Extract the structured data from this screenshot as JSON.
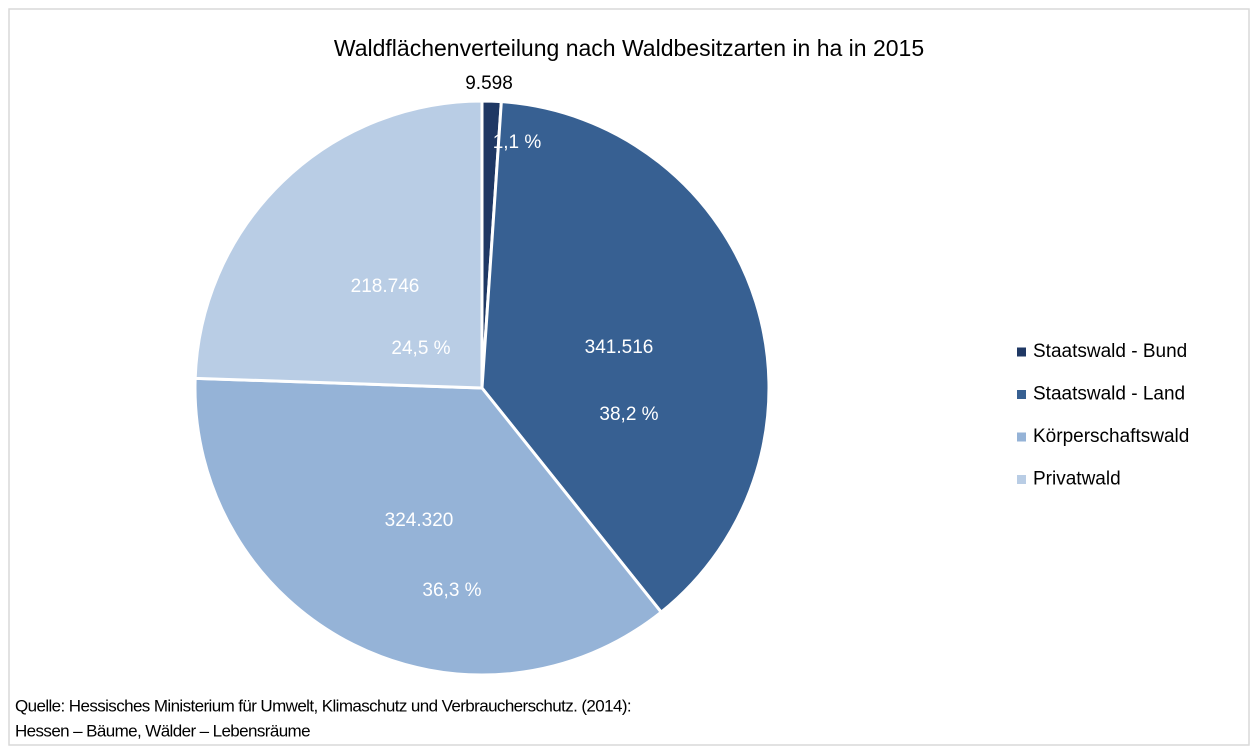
{
  "chart_data": {
    "type": "pie",
    "title": "Waldflächenverteilung nach Waldbesitzarten in ha in 2015",
    "categories": [
      "Staatswald - Bund",
      "Staatswald - Land",
      "Körperschaftswald",
      "Privatwald"
    ],
    "values": [
      9598,
      341516,
      324320,
      218746
    ],
    "value_labels": [
      "9.598",
      "341.516",
      "324.320",
      "218.746"
    ],
    "percent_values": [
      1.1,
      38.2,
      36.3,
      24.5
    ],
    "percent_labels": [
      "1,1 %",
      "38,2 %",
      "36,3 %",
      "24,5 %"
    ],
    "colors": [
      "#1f3864",
      "#376092",
      "#95b3d7",
      "#b9cde5"
    ],
    "legend": "right",
    "source": [
      "Quelle: Hessisches Ministerium für Umwelt, Klimaschutz und Verbraucherschutz. (2014):",
      "Hessen – Bäume, Wälder – Lebensräume"
    ]
  }
}
